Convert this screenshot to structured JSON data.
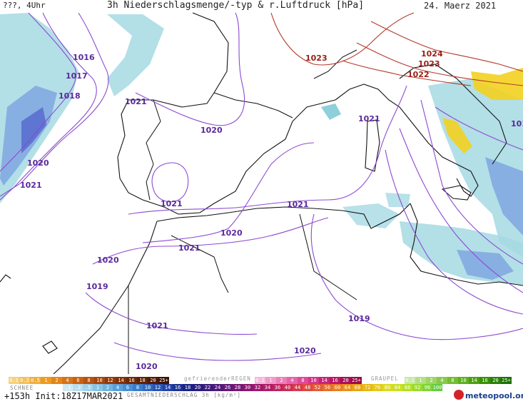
{
  "header": {
    "left": "???, 4Uhr",
    "title": "3h Niederschlagsmenge/-typ & r.Luftdruck [hPa]",
    "date": "24. Maerz 2021"
  },
  "isobar_labels": [
    {
      "text": "1016",
      "kind": "low"
    },
    {
      "text": "1017",
      "kind": "low"
    },
    {
      "text": "1018",
      "kind": "low"
    },
    {
      "text": "1020",
      "kind": "low"
    },
    {
      "text": "1021",
      "kind": "low"
    },
    {
      "text": "1021",
      "kind": "low"
    },
    {
      "text": "1020",
      "kind": "low"
    },
    {
      "text": "1021",
      "kind": "low"
    },
    {
      "text": "1021",
      "kind": "low"
    },
    {
      "text": "1020",
      "kind": "low"
    },
    {
      "text": "1021",
      "kind": "low"
    },
    {
      "text": "1021",
      "kind": "low"
    },
    {
      "text": "1020",
      "kind": "low"
    },
    {
      "text": "1019",
      "kind": "low"
    },
    {
      "text": "1021",
      "kind": "low"
    },
    {
      "text": "1019",
      "kind": "low"
    },
    {
      "text": "1020",
      "kind": "low"
    },
    {
      "text": "1020",
      "kind": "low"
    },
    {
      "text": "1023",
      "kind": "high"
    },
    {
      "text": "1024",
      "kind": "high"
    },
    {
      "text": "1023",
      "kind": "high"
    },
    {
      "text": "1022",
      "kind": "high"
    },
    {
      "text": "101",
      "kind": "low"
    }
  ],
  "legend": {
    "schnee_label": "SCHNEE",
    "schnee_values": [
      "0.1",
      "0.2",
      "0.5",
      "1",
      "2",
      "4",
      "6",
      "8",
      "10",
      "12",
      "14",
      "16",
      "18",
      "20",
      "25+"
    ],
    "regen_label": "gefrierenderREGEN",
    "regen_values": [
      "0.1",
      "1",
      "2",
      "4",
      "8",
      "10",
      "14",
      "16",
      "20",
      "25+"
    ],
    "graupel_label": "GRAUPEL",
    "graupel_values": [
      "0.1",
      "1",
      "2",
      "4",
      "8",
      "10",
      "14",
      "16",
      "20",
      "25+"
    ],
    "gesamt_values": [
      ".1",
      ".2",
      ".5",
      "1",
      "2",
      "4",
      "6",
      "8",
      "10",
      "12",
      "14",
      "16",
      "18",
      "20",
      "22",
      "24",
      "26",
      "28",
      "30",
      "32",
      "34",
      "36",
      "40",
      "44",
      "48",
      "52",
      "56",
      "60",
      "64",
      "68",
      "72",
      "76",
      "80",
      "84",
      "88",
      "92",
      "96",
      "100"
    ],
    "gesamt_caption": "GESAMTNIEDERSCHLAG 3h [kg/m²]"
  },
  "footer": {
    "run": "+153h Init:18Z17MAR2021",
    "brand": "meteopool.org"
  }
}
